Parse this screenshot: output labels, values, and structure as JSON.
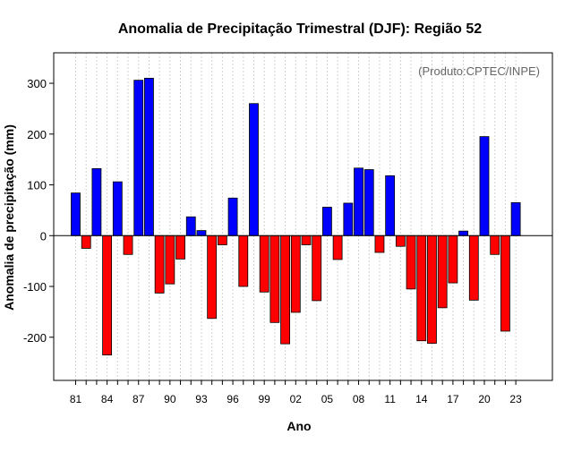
{
  "chart_data": {
    "type": "bar",
    "title": "Anomalia de Precipitação Trimestral (DJF): Região 52",
    "xlabel": "Ano",
    "ylabel": "Anomalia de precipitação (mm)",
    "annotation": "(Produto:CPTEC/INPE)",
    "ylim": [
      -285,
      360
    ],
    "yticks": [
      -200,
      -100,
      0,
      100,
      200,
      300
    ],
    "grid": true,
    "years": [
      1981,
      1982,
      1983,
      1984,
      1985,
      1986,
      1987,
      1988,
      1989,
      1990,
      1991,
      1992,
      1993,
      1994,
      1995,
      1996,
      1997,
      1998,
      1999,
      2000,
      2001,
      2002,
      2003,
      2004,
      2005,
      2006,
      2007,
      2008,
      2009,
      2010,
      2011,
      2012,
      2013,
      2014,
      2015,
      2016,
      2017,
      2018,
      2019,
      2020,
      2021,
      2022,
      2023
    ],
    "values": [
      84,
      -25,
      132,
      -235,
      106,
      -37,
      306,
      310,
      -113,
      -95,
      -46,
      37,
      10,
      -163,
      -18,
      74,
      -100,
      260,
      -111,
      -171,
      -213,
      -151,
      -18,
      -128,
      56,
      -47,
      64,
      133,
      130,
      -33,
      118,
      -21,
      -105,
      -207,
      -212,
      -142,
      -93,
      9,
      -127,
      195,
      -37,
      -188,
      65
    ],
    "tick_labels": [
      {
        "year": 1981,
        "label": "81"
      },
      {
        "year": 1984,
        "label": "84"
      },
      {
        "year": 1987,
        "label": "87"
      },
      {
        "year": 1990,
        "label": "90"
      },
      {
        "year": 1993,
        "label": "93"
      },
      {
        "year": 1996,
        "label": "96"
      },
      {
        "year": 1999,
        "label": "99"
      },
      {
        "year": 2002,
        "label": "02"
      },
      {
        "year": 2005,
        "label": "05"
      },
      {
        "year": 2008,
        "label": "08"
      },
      {
        "year": 2011,
        "label": "11"
      },
      {
        "year": 2014,
        "label": "14"
      },
      {
        "year": 2017,
        "label": "17"
      },
      {
        "year": 2020,
        "label": "20"
      },
      {
        "year": 2023,
        "label": "23"
      }
    ],
    "positive_color": "#0000ff",
    "negative_color": "#ff0000"
  }
}
